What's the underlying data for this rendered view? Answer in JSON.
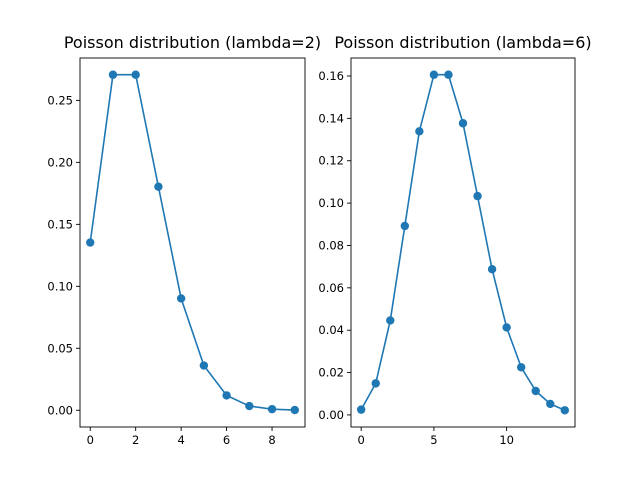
{
  "chart_data": [
    {
      "type": "line",
      "title": "Poisson distribution (lambda=2)",
      "xlabel": "",
      "ylabel": "",
      "x": [
        0,
        1,
        2,
        3,
        4,
        5,
        6,
        7,
        8,
        9
      ],
      "series": [
        {
          "values": [
            0.1353,
            0.2707,
            0.2707,
            0.1804,
            0.0902,
            0.0361,
            0.012,
            0.0034,
            0.0009,
            0.0002
          ],
          "color": "#1f77b4",
          "marker": "circle"
        }
      ],
      "xlim": [
        -0.45,
        9.45
      ],
      "ylim": [
        -0.0135,
        0.2842
      ],
      "xticks": [
        0,
        2,
        4,
        6,
        8
      ],
      "yticks": [
        0.0,
        0.05,
        0.1,
        0.15,
        0.2,
        0.25
      ],
      "xtick_labels": [
        "0",
        "2",
        "4",
        "6",
        "8"
      ],
      "ytick_labels": [
        "0.00",
        "0.05",
        "0.10",
        "0.15",
        "0.20",
        "0.25"
      ],
      "grid": false,
      "legend": "none"
    },
    {
      "type": "line",
      "title": "Poisson distribution (lambda=6)",
      "xlabel": "",
      "ylabel": "",
      "x": [
        0,
        1,
        2,
        3,
        4,
        5,
        6,
        7,
        8,
        9,
        10,
        11,
        12,
        13,
        14
      ],
      "series": [
        {
          "values": [
            0.0025,
            0.0149,
            0.0446,
            0.0892,
            0.1339,
            0.1606,
            0.1606,
            0.1377,
            0.1033,
            0.0688,
            0.0413,
            0.0225,
            0.0113,
            0.0052,
            0.0022
          ],
          "color": "#1f77b4",
          "marker": "circle"
        }
      ],
      "xlim": [
        -0.7,
        14.7
      ],
      "ylim": [
        -0.0057,
        0.1685
      ],
      "xticks": [
        0,
        5,
        10
      ],
      "yticks": [
        0.0,
        0.02,
        0.04,
        0.06,
        0.08,
        0.1,
        0.12,
        0.14,
        0.16
      ],
      "xtick_labels": [
        "0",
        "5",
        "10"
      ],
      "ytick_labels": [
        "0.00",
        "0.02",
        "0.04",
        "0.06",
        "0.08",
        "0.10",
        "0.12",
        "0.14",
        "0.16"
      ],
      "grid": false,
      "legend": "none"
    }
  ]
}
